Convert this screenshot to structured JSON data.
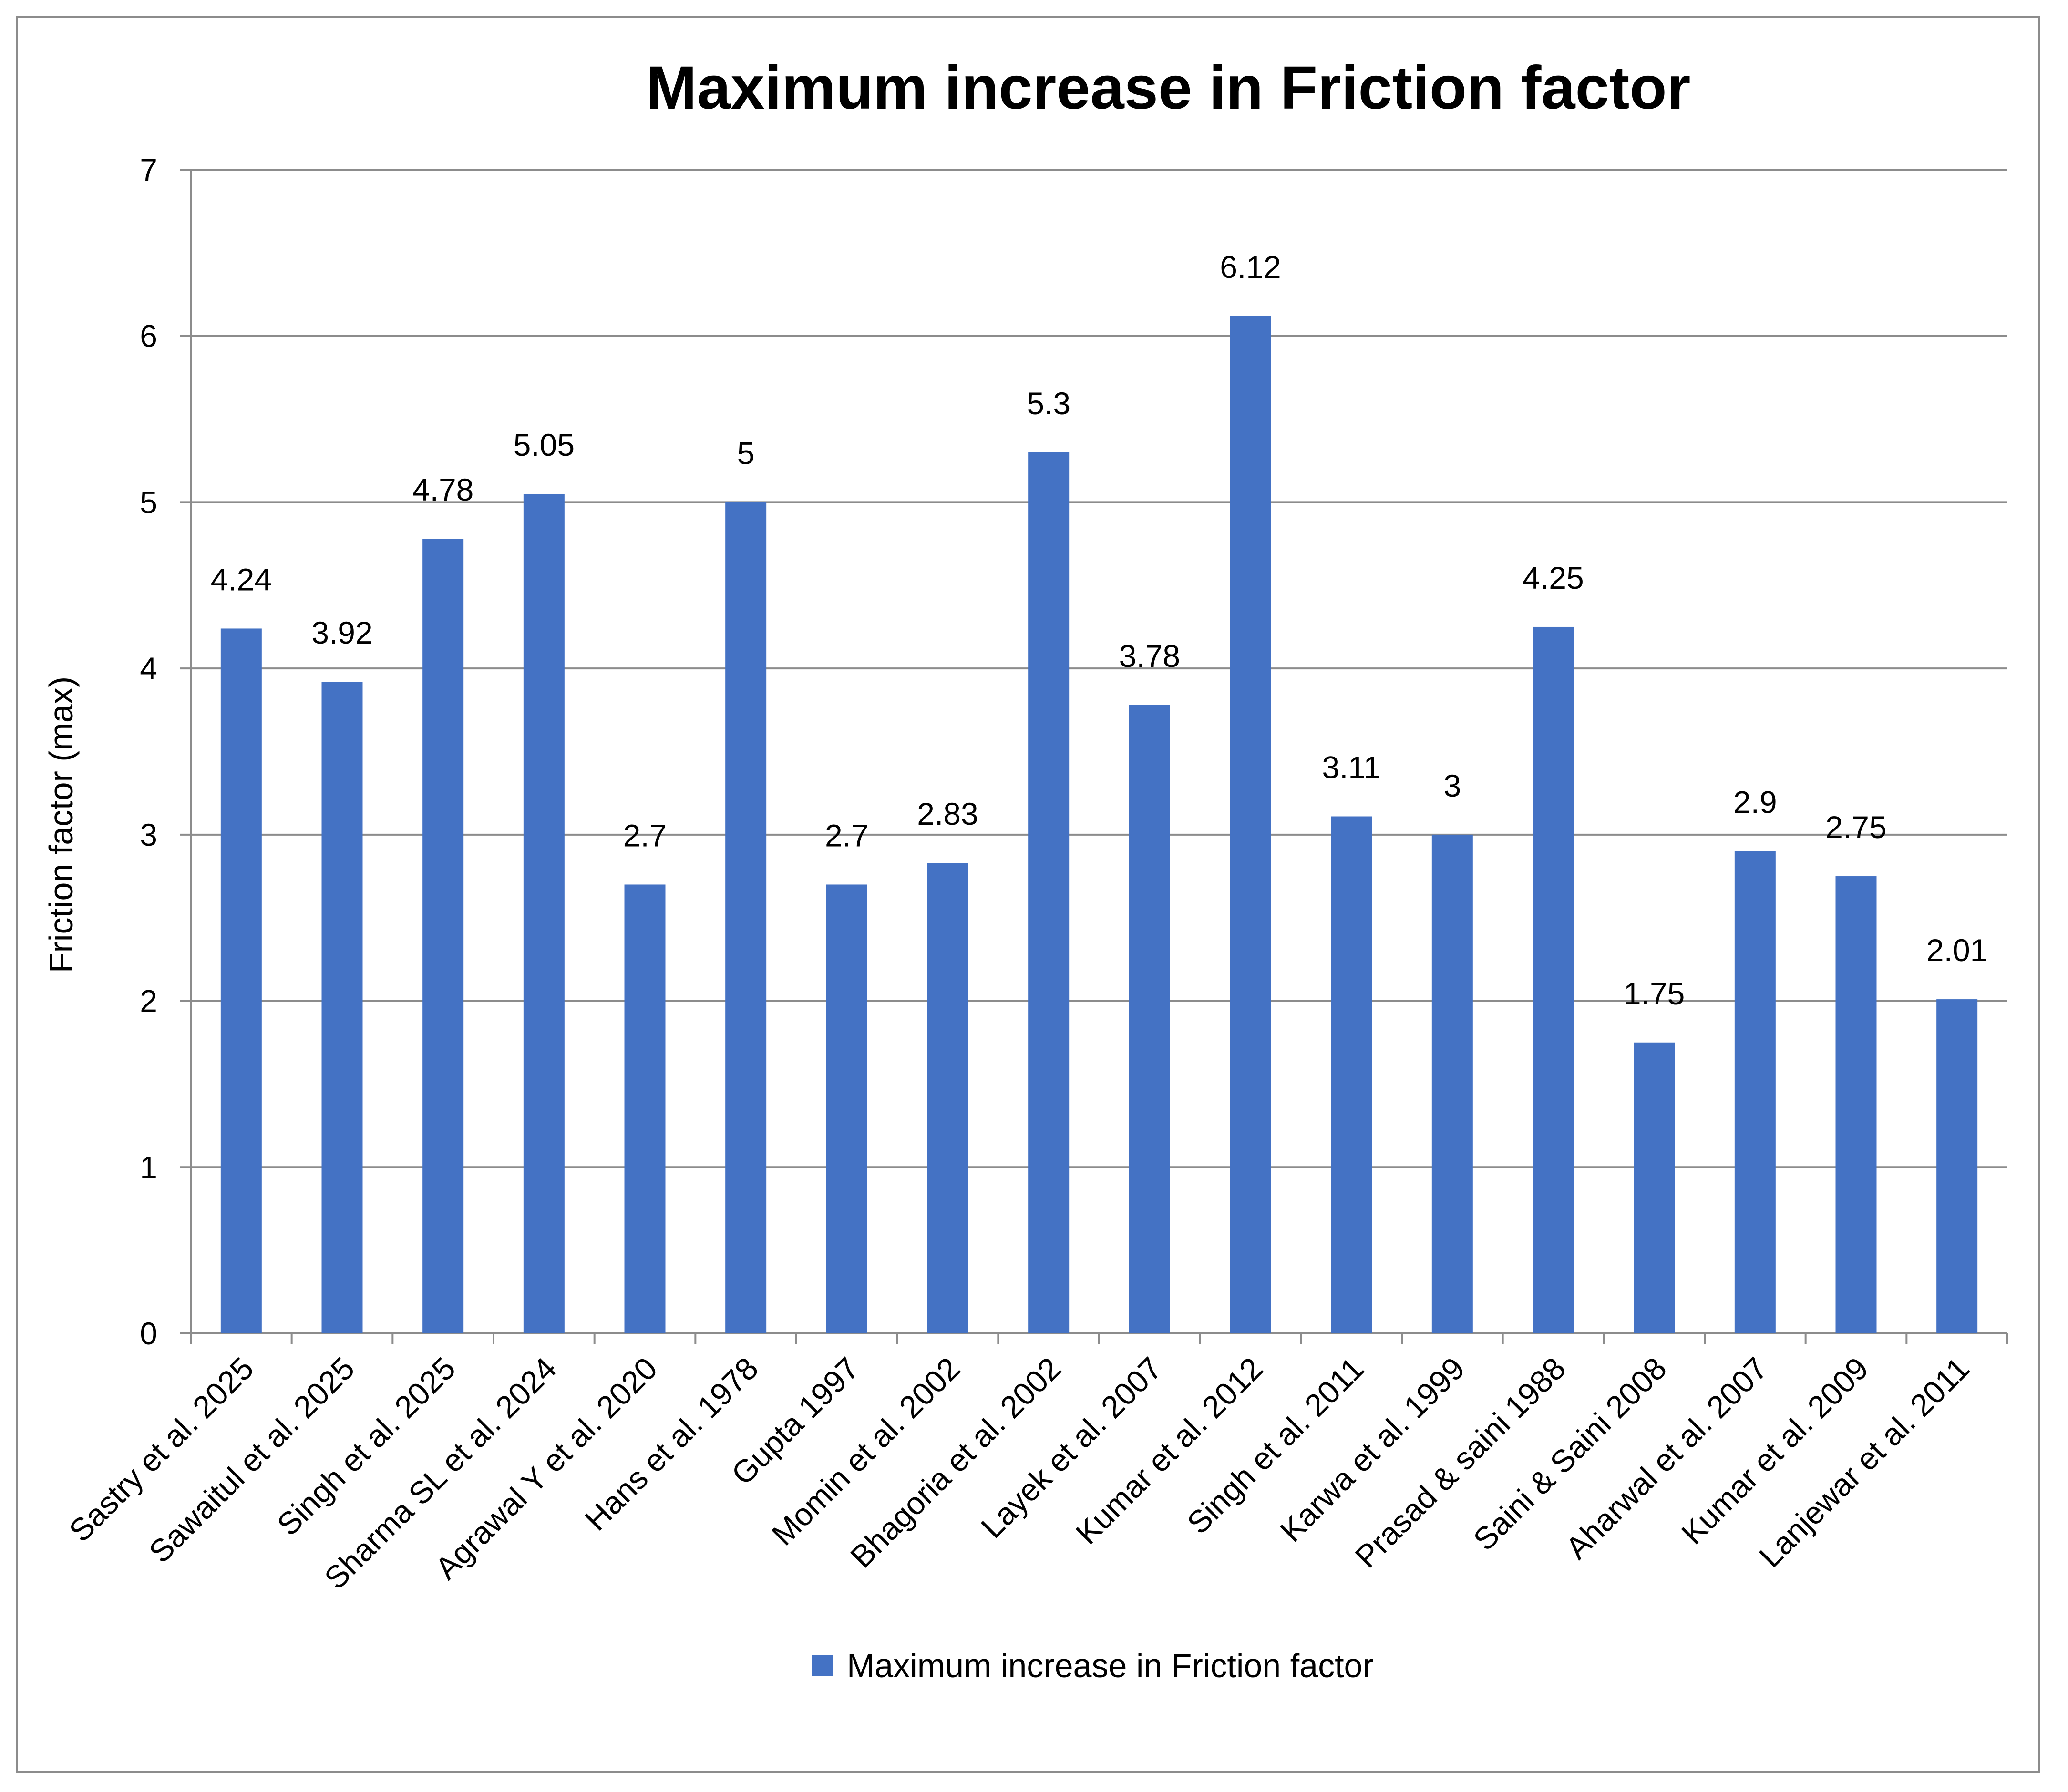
{
  "chart_data": {
    "type": "bar",
    "title": "Maximum increase in Friction factor",
    "xlabel": "",
    "ylabel": "Friction factor (max)",
    "ylim": [
      0,
      7
    ],
    "yticks": [
      "0",
      "1",
      "2",
      "3",
      "4",
      "5",
      "6",
      "7"
    ],
    "grid": true,
    "legend_position": "bottom",
    "bar_color": "#4472C4",
    "categories": [
      "Sastry et al. 2025",
      "Sawaitul et al. 2025",
      "Singh et al. 2025",
      "Sharma SL et al. 2024",
      "Agrawal Y et al. 2020",
      "Hans et al. 1978",
      "Gupta 1997",
      "Momin et al. 2002",
      "Bhagoria et al. 2002",
      "Layek et al. 2007",
      "Kumar et al. 2012",
      "Singh et al. 2011",
      "Karwa et al. 1999",
      "Prasad & saini 1988",
      "Saini & Saini 2008",
      "Aharwal et al. 2007",
      "Kumar et al. 2009",
      "Lanjewar et al. 2011"
    ],
    "series": [
      {
        "name": "Maximum increase in Friction factor",
        "values": [
          4.24,
          3.92,
          4.78,
          5.05,
          2.7,
          5,
          2.7,
          2.83,
          5.3,
          3.78,
          6.12,
          3.11,
          3,
          4.25,
          1.75,
          2.9,
          2.75,
          2.01
        ],
        "labels": [
          "4.24",
          "3.92",
          "4.78",
          "5.05",
          "2.7",
          "5",
          "2.7",
          "2.83",
          "5.3",
          "3.78",
          "6.12",
          "3.11",
          "3",
          "4.25",
          "1.75",
          "2.9",
          "2.75",
          "2.01"
        ]
      }
    ]
  }
}
